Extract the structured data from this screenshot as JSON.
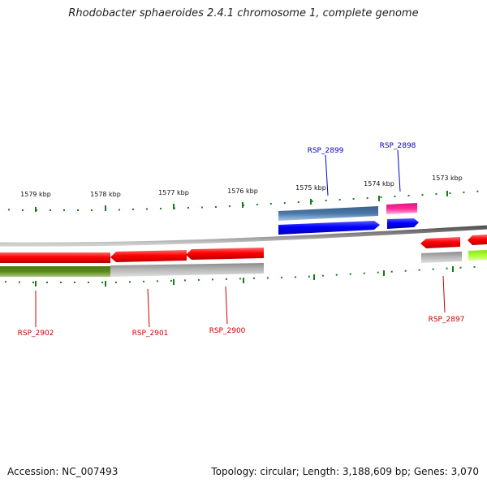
{
  "header": {
    "title": "Rhodobacter sphaeroides 2.4.1 chromosome 1, complete genome"
  },
  "footer": {
    "accession": "Accession: NC_007493",
    "summary": "Topology: circular; Length: 3,188,609 bp; Genes: 3,070"
  },
  "scale_labels": [
    "1579 kbp",
    "1578 kbp",
    "1577 kbp",
    "1576 kbp",
    "1575 kbp",
    "1574 kbp",
    "1573 kbp"
  ],
  "gene_labels": [
    {
      "name": "RSP_2902",
      "color": "#cc0000"
    },
    {
      "name": "RSP_2901",
      "color": "#cc0000"
    },
    {
      "name": "RSP_2900",
      "color": "#cc0000"
    },
    {
      "name": "RSP_2899",
      "color": "#0000cc"
    },
    {
      "name": "RSP_2898",
      "color": "#0000cc"
    },
    {
      "name": "RSP_2897",
      "color": "#cc0000"
    }
  ],
  "colors": {
    "backbone": "#808080",
    "tick": "#1a7a1a",
    "forward_cds": "#0000ff",
    "forward_feature": "#4a78a8",
    "forward_feature_2": "#ff2a9a",
    "reverse_cds": "#ff0000",
    "reverse_feature": "#b0b0b0",
    "reverse_feature_green": "#5a8a1a",
    "reverse_feature_lime": "#aaff33"
  }
}
